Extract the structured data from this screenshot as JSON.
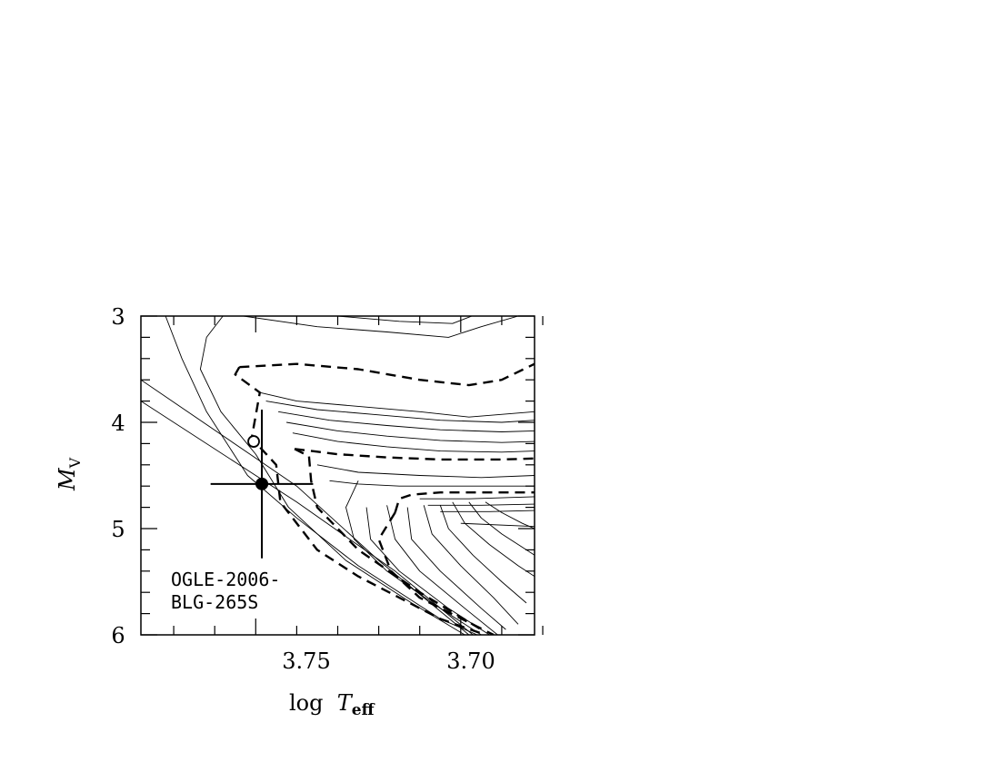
{
  "chart_data": {
    "type": "line",
    "xlabel": {
      "main": "log  ",
      "var": "T",
      "sub": "eff"
    },
    "ylabel": {
      "var": "M",
      "sub": "V"
    },
    "xlim": [
      3.778,
      3.682
    ],
    "ylim": [
      6,
      3
    ],
    "x_tick_labels": [
      "3.75",
      "3.70"
    ],
    "y_tick_labels": [
      "3",
      "4",
      "5",
      "6"
    ],
    "annotation": [
      "OGLE-2006-",
      "BLG-265S"
    ],
    "measurement": {
      "x": 3.7485,
      "y": 4.58,
      "xerr": 0.0125,
      "yerr": 0.7
    },
    "open_point": {
      "x": 3.7505,
      "y": 4.18
    },
    "series": [
      {
        "style": "solid",
        "points": [
          [
            3.778,
            3.6
          ],
          [
            3.74,
            4.6
          ],
          [
            3.72,
            5.3
          ],
          [
            3.698,
            6.0
          ]
        ]
      },
      {
        "style": "solid",
        "points": [
          [
            3.778,
            3.8
          ],
          [
            3.74,
            4.75
          ],
          [
            3.716,
            5.4
          ],
          [
            3.697,
            6.0
          ]
        ]
      },
      {
        "style": "solid",
        "points": [
          [
            3.772,
            3.0
          ],
          [
            3.768,
            3.4
          ],
          [
            3.762,
            3.9
          ],
          [
            3.752,
            4.5
          ],
          [
            3.74,
            4.9
          ],
          [
            3.725,
            5.35
          ],
          [
            3.705,
            5.85
          ],
          [
            3.696,
            6.0
          ]
        ]
      },
      {
        "style": "solid",
        "points": [
          [
            3.758,
            3.0
          ],
          [
            3.762,
            3.2
          ],
          [
            3.7635,
            3.5
          ],
          [
            3.7585,
            3.9
          ],
          [
            3.75,
            4.3
          ],
          [
            3.742,
            4.8
          ],
          [
            3.728,
            5.3
          ],
          [
            3.712,
            5.7
          ],
          [
            3.699,
            6.0
          ]
        ]
      },
      {
        "style": "solid",
        "points": [
          [
            3.753,
            3.0
          ],
          [
            3.735,
            3.1
          ],
          [
            3.718,
            3.15
          ],
          [
            3.703,
            3.2
          ],
          [
            3.695,
            3.1
          ],
          [
            3.686,
            3.0
          ],
          [
            3.682,
            2.9
          ]
        ]
      },
      {
        "style": "solid",
        "points": [
          [
            3.73,
            3.0
          ],
          [
            3.715,
            3.05
          ],
          [
            3.702,
            3.07
          ],
          [
            3.694,
            2.95
          ]
        ]
      },
      {
        "style": "dashed",
        "points": [
          [
            3.754,
            3.48
          ],
          [
            3.74,
            3.45
          ],
          [
            3.725,
            3.5
          ],
          [
            3.71,
            3.6
          ],
          [
            3.698,
            3.65
          ],
          [
            3.69,
            3.6
          ],
          [
            3.682,
            3.45
          ]
        ]
      },
      {
        "style": "dashed",
        "points": [
          [
            3.754,
            3.48
          ],
          [
            3.755,
            3.55
          ],
          [
            3.749,
            3.72
          ],
          [
            3.751,
            4.15
          ],
          [
            3.745,
            4.4
          ],
          [
            3.744,
            4.75
          ],
          [
            3.735,
            5.2
          ],
          [
            3.725,
            5.45
          ],
          [
            3.705,
            5.85
          ],
          [
            3.694,
            6.0
          ]
        ]
      },
      {
        "style": "solid",
        "points": [
          [
            3.749,
            3.72
          ],
          [
            3.74,
            3.8
          ],
          [
            3.725,
            3.85
          ],
          [
            3.71,
            3.9
          ],
          [
            3.698,
            3.95
          ],
          [
            3.682,
            3.9
          ]
        ]
      },
      {
        "style": "solid",
        "points": [
          [
            3.7475,
            3.8
          ],
          [
            3.735,
            3.88
          ],
          [
            3.72,
            3.93
          ],
          [
            3.705,
            3.98
          ],
          [
            3.69,
            4.0
          ],
          [
            3.682,
            3.98
          ]
        ]
      },
      {
        "style": "solid",
        "points": [
          [
            3.7445,
            3.9
          ],
          [
            3.732,
            3.98
          ],
          [
            3.718,
            4.03
          ],
          [
            3.705,
            4.07
          ],
          [
            3.69,
            4.09
          ],
          [
            3.682,
            4.08
          ]
        ]
      },
      {
        "style": "solid",
        "points": [
          [
            3.7425,
            4.0
          ],
          [
            3.73,
            4.08
          ],
          [
            3.718,
            4.13
          ],
          [
            3.705,
            4.17
          ],
          [
            3.69,
            4.19
          ],
          [
            3.682,
            4.18
          ]
        ]
      },
      {
        "style": "solid",
        "points": [
          [
            3.741,
            4.1
          ],
          [
            3.73,
            4.18
          ],
          [
            3.718,
            4.23
          ],
          [
            3.705,
            4.27
          ],
          [
            3.69,
            4.28
          ],
          [
            3.682,
            4.27
          ]
        ]
      },
      {
        "style": "dashed",
        "points": [
          [
            3.7405,
            4.25
          ],
          [
            3.73,
            4.3
          ],
          [
            3.718,
            4.33
          ],
          [
            3.705,
            4.35
          ],
          [
            3.69,
            4.35
          ],
          [
            3.682,
            4.34
          ]
        ]
      },
      {
        "style": "dashed",
        "points": [
          [
            3.7405,
            4.25
          ],
          [
            3.737,
            4.32
          ],
          [
            3.7365,
            4.55
          ],
          [
            3.735,
            4.8
          ],
          [
            3.725,
            5.2
          ],
          [
            3.71,
            5.6
          ],
          [
            3.695,
            5.95
          ]
        ]
      },
      {
        "style": "solid",
        "points": [
          [
            3.735,
            4.4
          ],
          [
            3.725,
            4.47
          ],
          [
            3.71,
            4.5
          ],
          [
            3.695,
            4.52
          ],
          [
            3.682,
            4.5
          ]
        ]
      },
      {
        "style": "solid",
        "points": [
          [
            3.732,
            4.55
          ],
          [
            3.725,
            4.58
          ],
          [
            3.715,
            4.6
          ],
          [
            3.7,
            4.6
          ],
          [
            3.682,
            4.6
          ]
        ]
      },
      {
        "style": "dashed",
        "points": [
          [
            3.716,
            4.85
          ],
          [
            3.715,
            4.72
          ],
          [
            3.712,
            4.68
          ],
          [
            3.705,
            4.66
          ],
          [
            3.695,
            4.66
          ],
          [
            3.682,
            4.66
          ]
        ]
      },
      {
        "style": "dashed",
        "points": [
          [
            3.716,
            4.85
          ],
          [
            3.72,
            5.1
          ],
          [
            3.717,
            5.4
          ],
          [
            3.71,
            5.65
          ],
          [
            3.692,
            6.0
          ]
        ]
      },
      {
        "style": "solid",
        "points": [
          [
            3.725,
            4.55
          ],
          [
            3.728,
            4.8
          ],
          [
            3.726,
            5.1
          ],
          [
            3.718,
            5.4
          ],
          [
            3.705,
            5.75
          ],
          [
            3.695,
            6.0
          ]
        ]
      },
      {
        "style": "solid",
        "points": [
          [
            3.723,
            4.8
          ],
          [
            3.722,
            5.1
          ],
          [
            3.715,
            5.4
          ],
          [
            3.703,
            5.75
          ],
          [
            3.693,
            6.0
          ]
        ]
      },
      {
        "style": "solid",
        "points": [
          [
            3.718,
            4.78
          ],
          [
            3.716,
            5.1
          ],
          [
            3.71,
            5.4
          ],
          [
            3.699,
            5.75
          ],
          [
            3.691,
            6.0
          ]
        ]
      },
      {
        "style": "solid",
        "points": [
          [
            3.713,
            4.8
          ],
          [
            3.712,
            5.1
          ],
          [
            3.705,
            5.4
          ],
          [
            3.695,
            5.75
          ],
          [
            3.689,
            5.95
          ]
        ]
      },
      {
        "style": "solid",
        "points": [
          [
            3.709,
            4.78
          ],
          [
            3.707,
            5.05
          ],
          [
            3.7,
            5.35
          ],
          [
            3.692,
            5.65
          ],
          [
            3.686,
            5.9
          ]
        ]
      },
      {
        "style": "solid",
        "points": [
          [
            3.705,
            4.78
          ],
          [
            3.703,
            5.0
          ],
          [
            3.697,
            5.25
          ],
          [
            3.69,
            5.5
          ],
          [
            3.684,
            5.7
          ]
        ]
      },
      {
        "style": "solid",
        "points": [
          [
            3.702,
            4.75
          ],
          [
            3.699,
            4.95
          ],
          [
            3.693,
            5.15
          ],
          [
            3.686,
            5.35
          ],
          [
            3.682,
            5.45
          ]
        ]
      },
      {
        "style": "solid",
        "points": [
          [
            3.698,
            4.75
          ],
          [
            3.695,
            4.9
          ],
          [
            3.69,
            5.05
          ],
          [
            3.684,
            5.2
          ],
          [
            3.682,
            5.25
          ]
        ]
      },
      {
        "style": "solid",
        "points": [
          [
            3.694,
            4.75
          ],
          [
            3.69,
            4.85
          ],
          [
            3.685,
            4.95
          ],
          [
            3.682,
            5.0
          ]
        ]
      },
      {
        "style": "solid",
        "points": [
          [
            3.71,
            4.72
          ],
          [
            3.698,
            4.72
          ],
          [
            3.682,
            4.7
          ]
        ]
      },
      {
        "style": "solid",
        "points": [
          [
            3.708,
            4.78
          ],
          [
            3.695,
            4.78
          ],
          [
            3.682,
            4.77
          ]
        ]
      },
      {
        "style": "solid",
        "points": [
          [
            3.705,
            4.84
          ],
          [
            3.693,
            4.84
          ],
          [
            3.682,
            4.83
          ]
        ]
      },
      {
        "style": "solid",
        "points": [
          [
            3.7,
            4.95
          ],
          [
            3.682,
            4.98
          ]
        ]
      }
    ]
  }
}
